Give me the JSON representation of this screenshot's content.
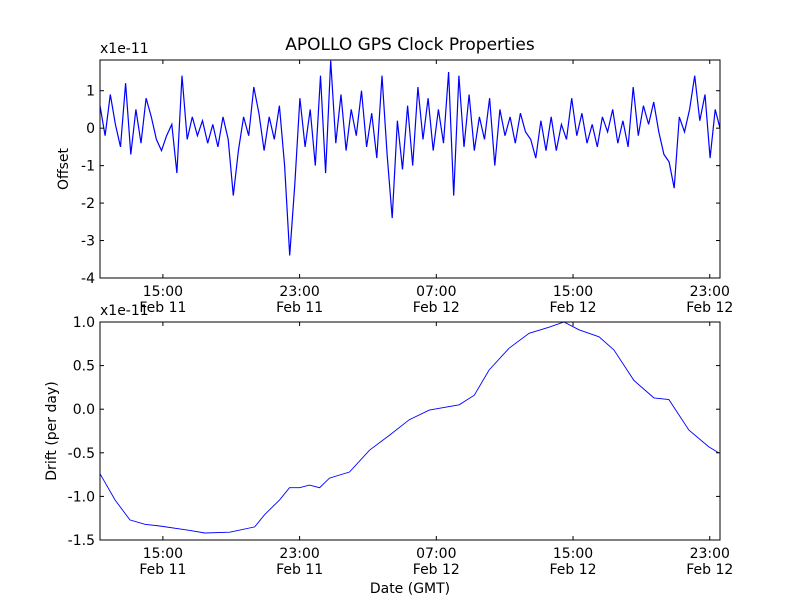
{
  "chart_data": [
    {
      "type": "line",
      "title": "APOLLO GPS Clock Properties",
      "ylabel": "Offset",
      "xlabel": "",
      "offset_label": "x1e-11",
      "ylim": [
        -4,
        1.82
      ],
      "xlim_hours": [
        11.32,
        47.6
      ],
      "yticks": [
        -4,
        -3,
        -2,
        -1,
        0,
        1
      ],
      "ytick_labels": [
        "-4",
        "-3",
        "-2",
        "-1",
        "0",
        "1"
      ],
      "xticks_hours": [
        15,
        23,
        31,
        39,
        47
      ],
      "xtick_labels": [
        [
          "15:00",
          "Feb 11"
        ],
        [
          "23:00",
          "Feb 11"
        ],
        [
          "07:00",
          "Feb 12"
        ],
        [
          "15:00",
          "Feb 12"
        ],
        [
          "23:00",
          "Feb 12"
        ]
      ],
      "color": "#0000ff",
      "x_start_hours": 11.32,
      "x_step_hours": 0.3,
      "values": [
        0.6,
        -0.2,
        0.9,
        0.1,
        -0.5,
        1.2,
        -0.7,
        0.5,
        -0.4,
        0.8,
        0.3,
        -0.3,
        -0.6,
        -0.2,
        0.1,
        -1.2,
        1.4,
        -0.3,
        0.3,
        -0.2,
        0.2,
        -0.4,
        0.1,
        -0.5,
        0.3,
        -0.3,
        -1.8,
        -0.6,
        0.3,
        -0.2,
        1.1,
        0.4,
        -0.6,
        0.3,
        -0.3,
        0.6,
        -1.0,
        -3.4,
        -1.5,
        0.8,
        -0.5,
        0.5,
        -1.0,
        1.4,
        -1.2,
        1.8,
        -0.4,
        0.9,
        -0.6,
        0.5,
        -0.2,
        1.0,
        -0.5,
        0.4,
        -0.8,
        1.4,
        -0.7,
        -2.4,
        0.2,
        -1.1,
        0.6,
        -1.0,
        1.1,
        -0.3,
        0.8,
        -0.6,
        0.5,
        -0.4,
        1.5,
        -1.8,
        1.4,
        -0.5,
        0.9,
        -0.6,
        0.3,
        -0.3,
        0.8,
        -1.0,
        0.5,
        -0.2,
        0.3,
        -0.4,
        0.4,
        -0.1,
        -0.3,
        -0.8,
        0.2,
        -0.6,
        0.3,
        -0.6,
        0.1,
        -0.3,
        0.8,
        -0.2,
        0.4,
        -0.4,
        0.1,
        -0.5,
        0.3,
        -0.1,
        0.5,
        -0.4,
        0.2,
        -0.5,
        1.1,
        -0.2,
        0.6,
        0.1,
        0.7,
        -0.1,
        -0.7,
        -0.9,
        -1.6,
        0.3,
        -0.1,
        0.5,
        1.4,
        0.2,
        0.9,
        -0.8,
        0.5,
        0.0
      ]
    },
    {
      "type": "line",
      "title": "",
      "ylabel": "Drift (per day)",
      "xlabel": "Date (GMT)",
      "offset_label": "x1e-11",
      "ylim": [
        -1.5,
        1.0
      ],
      "xlim_hours": [
        11.32,
        47.6
      ],
      "yticks": [
        -1.5,
        -1.0,
        -0.5,
        0.0,
        0.5,
        1.0
      ],
      "ytick_labels": [
        "-1.5",
        "-1.0",
        "-0.5",
        "0.0",
        "0.5",
        "1.0"
      ],
      "xticks_hours": [
        15,
        23,
        31,
        39,
        47
      ],
      "xtick_labels": [
        [
          "15:00",
          "Feb 11"
        ],
        [
          "23:00",
          "Feb 11"
        ],
        [
          "07:00",
          "Feb 12"
        ],
        [
          "15:00",
          "Feb 12"
        ],
        [
          "23:00",
          "Feb 12"
        ]
      ],
      "color": "#0000ff",
      "x_hours": [
        11.32,
        12.2,
        13.07,
        13.95,
        14.82,
        16.58,
        17.45,
        18.91,
        20.37,
        20.95,
        21.83,
        22.41,
        23.0,
        23.58,
        24.17,
        24.75,
        25.92,
        27.09,
        28.25,
        29.42,
        30.59,
        32.34,
        33.22,
        34.09,
        35.26,
        36.43,
        37.6,
        38.47,
        39.35,
        40.52,
        41.39,
        42.56,
        43.73,
        44.61,
        45.78,
        46.94,
        47.52
      ],
      "values": [
        -0.74,
        -1.04,
        -1.27,
        -1.32,
        -1.34,
        -1.39,
        -1.42,
        -1.41,
        -1.35,
        -1.21,
        -1.04,
        -0.9,
        -0.9,
        -0.87,
        -0.9,
        -0.79,
        -0.72,
        -0.47,
        -0.3,
        -0.12,
        -0.01,
        0.05,
        0.16,
        0.45,
        0.7,
        0.87,
        0.94,
        1.0,
        0.91,
        0.83,
        0.68,
        0.33,
        0.13,
        0.11,
        -0.24,
        -0.43,
        -0.5
      ]
    }
  ]
}
